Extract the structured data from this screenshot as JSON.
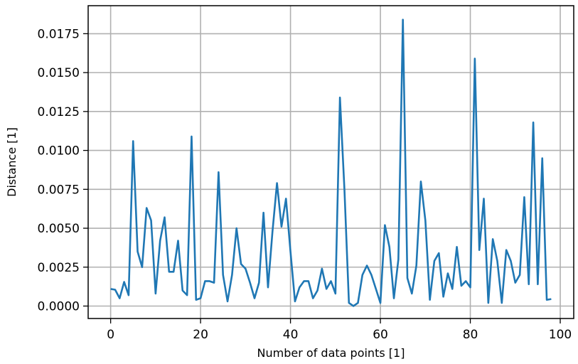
{
  "chart_data": {
    "type": "line",
    "title": "",
    "xlabel": "Number of data points [1]",
    "ylabel": "Distance [1]",
    "xlim": [
      -5,
      103
    ],
    "ylim": [
      -0.0008,
      0.0193
    ],
    "grid": true,
    "line_color": "#1f77b4",
    "grid_color": "#b0b0b0",
    "x_ticks": [
      0,
      20,
      40,
      60,
      80,
      100
    ],
    "y_ticks": [
      0.0,
      0.0025,
      0.005,
      0.0075,
      0.01,
      0.0125,
      0.015,
      0.0175
    ],
    "x_tick_labels": [
      "0",
      "20",
      "40",
      "60",
      "80",
      "100"
    ],
    "y_tick_labels": [
      "0.0000",
      "0.0025",
      "0.0050",
      "0.0075",
      "0.0100",
      "0.0125",
      "0.0150",
      "0.0175"
    ],
    "series": [
      {
        "x": [
          0,
          1,
          2,
          3,
          4,
          5,
          6,
          7,
          8,
          9,
          10,
          11,
          12,
          13,
          14,
          15,
          16,
          17,
          18,
          19,
          20,
          21,
          22,
          23,
          24,
          25,
          26,
          27,
          28,
          29,
          30,
          31,
          32,
          33,
          34,
          35,
          36,
          37,
          38,
          39,
          40,
          41,
          42,
          43,
          44,
          45,
          46,
          47,
          48,
          49,
          50,
          51,
          52,
          53,
          54,
          55,
          56,
          57,
          58,
          59,
          60,
          61,
          62,
          63,
          64,
          65,
          66,
          67,
          68,
          69,
          70,
          71,
          72,
          73,
          74,
          75,
          76,
          77,
          78,
          79,
          80,
          81,
          82,
          83,
          84,
          85,
          86,
          87,
          88,
          89,
          90,
          91,
          92,
          93,
          94,
          95,
          96,
          97,
          98
        ],
        "y": [
          0.0011,
          0.00105,
          0.0005,
          0.00155,
          0.0007,
          0.0106,
          0.0035,
          0.0025,
          0.0063,
          0.0055,
          0.0008,
          0.0042,
          0.0057,
          0.0022,
          0.0022,
          0.0042,
          0.001,
          0.0007,
          0.0109,
          0.0004,
          0.0005,
          0.0016,
          0.0016,
          0.0015,
          0.0086,
          0.002,
          0.0003,
          0.002,
          0.005,
          0.0027,
          0.0024,
          0.0015,
          0.0005,
          0.0015,
          0.006,
          0.0012,
          0.0048,
          0.0079,
          0.0051,
          0.0069,
          0.0035,
          0.0003,
          0.0012,
          0.0016,
          0.0016,
          0.0005,
          0.001,
          0.0024,
          0.0011,
          0.0016,
          0.0008,
          0.0134,
          0.0075,
          0.0002,
          0.0,
          0.0002,
          0.002,
          0.0026,
          0.002,
          0.0011,
          0.0002,
          0.0052,
          0.0038,
          0.0005,
          0.003,
          0.0184,
          0.0018,
          0.0008,
          0.0026,
          0.008,
          0.0055,
          0.0004,
          0.0029,
          0.0034,
          0.0006,
          0.0021,
          0.0011,
          0.0038,
          0.0013,
          0.0016,
          0.0012,
          0.0159,
          0.0036,
          0.0069,
          0.0002,
          0.0043,
          0.0029,
          0.0002,
          0.0036,
          0.0029,
          0.0015,
          0.002,
          0.007,
          0.0014,
          0.0118,
          0.0014,
          0.0095,
          0.0004,
          0.00045
        ]
      }
    ]
  }
}
